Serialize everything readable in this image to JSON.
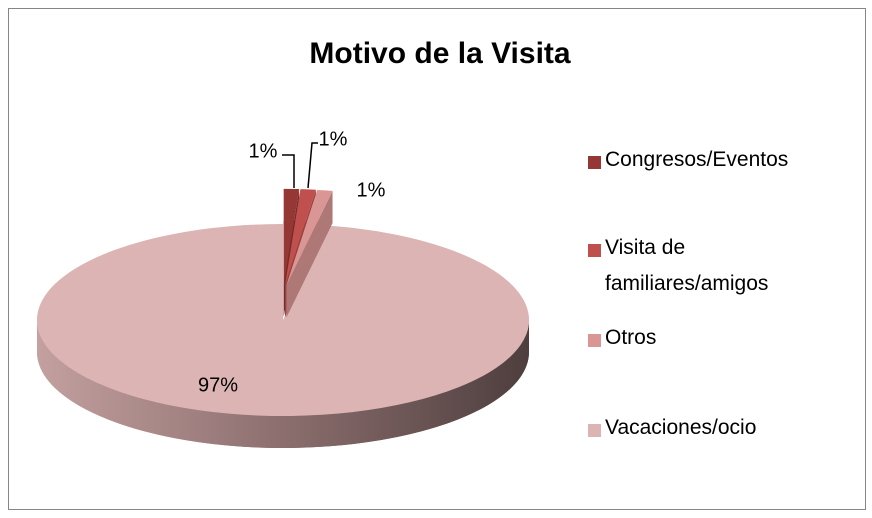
{
  "chart_data": {
    "type": "pie",
    "title": "Motivo de la Visita",
    "categories": [
      "Congresos/Eventos",
      "Visita de familiares/amigos",
      "Otros",
      "Vacaciones/ocio"
    ],
    "values": [
      1,
      1,
      1,
      97
    ],
    "value_labels": [
      "1%",
      "1%",
      "1%",
      "97%"
    ],
    "colors": [
      "#953735",
      "#c0504d",
      "#d99694",
      "#dbb4b3"
    ],
    "legend": "right"
  }
}
